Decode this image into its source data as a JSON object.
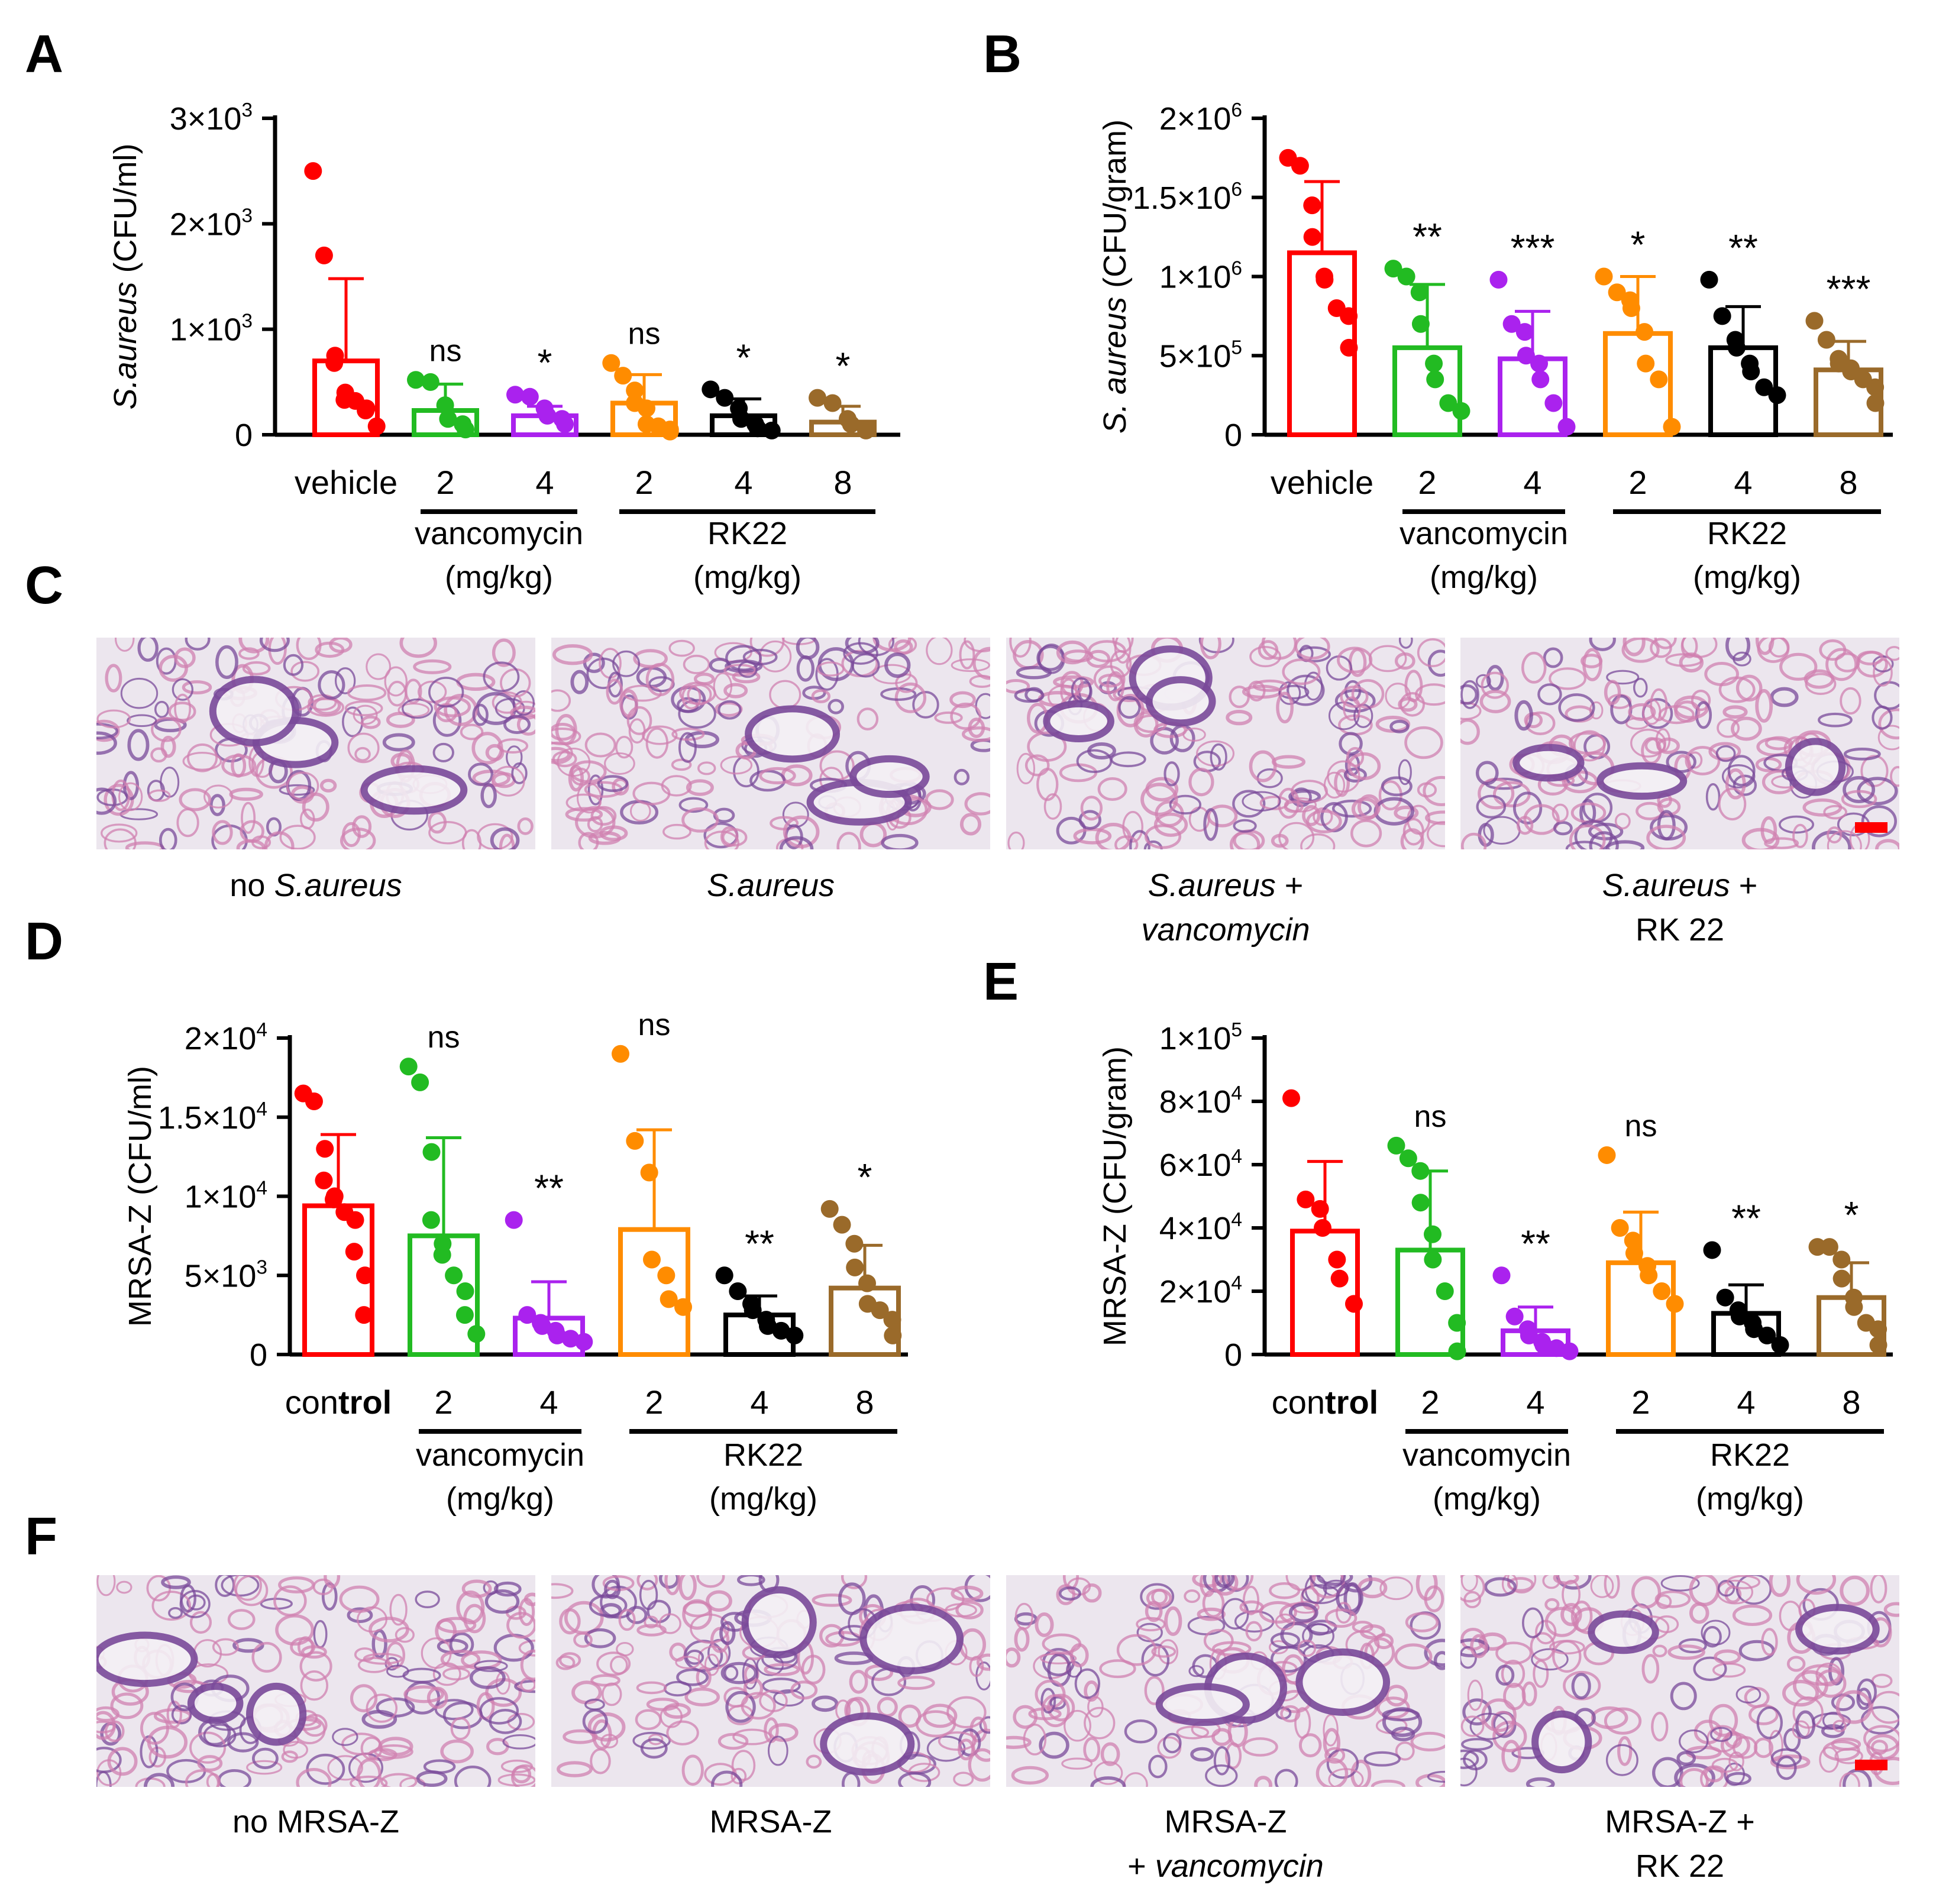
{
  "panel_letters": [
    "A",
    "B",
    "C",
    "D",
    "E",
    "F"
  ],
  "colors": {
    "vehicle": "#ff0000",
    "vanco2": "#22bb22",
    "vanco4": "#aa22ee",
    "rk2": "#ff8c00",
    "rk4": "#000000",
    "rk8": "#9a6a2a",
    "scale_bar": "#ff0000",
    "tissue_bg": "#ece6ee",
    "tissue_pink": "#d080b0",
    "tissue_purple": "#7a4a9a"
  },
  "chart_data": [
    {
      "id": "A",
      "type": "bar",
      "ylabel_italic": "S.aureus",
      "ylabel_rest": " (CFU/ml)",
      "ylim": [
        0,
        3000
      ],
      "yticks": [
        {
          "value": 0,
          "base": "0",
          "exp": ""
        },
        {
          "value": 1000,
          "base": "1×10",
          "exp": "3"
        },
        {
          "value": 2000,
          "base": "2×10",
          "exp": "3"
        },
        {
          "value": 3000,
          "base": "3×10",
          "exp": "3"
        }
      ],
      "groups": [
        {
          "label": "vehicle",
          "color": "#ff0000",
          "mean": 700,
          "sd": 780,
          "sig": "",
          "points": [
            2500,
            1700,
            750,
            680,
            400,
            330,
            320,
            250,
            230,
            80
          ]
        },
        {
          "label": "2",
          "color": "#22bb22",
          "mean": 230,
          "sd": 250,
          "sig": "ns",
          "points": [
            520,
            500,
            280,
            150,
            100,
            50
          ]
        },
        {
          "label": "4",
          "color": "#aa22ee",
          "mean": 180,
          "sd": 90,
          "sig": "*",
          "points": [
            380,
            360,
            250,
            180,
            150,
            100
          ]
        },
        {
          "label": "2",
          "color": "#ff8c00",
          "mean": 300,
          "sd": 270,
          "sig": "ns",
          "points": [
            680,
            560,
            420,
            300,
            250,
            100,
            80,
            50,
            30
          ]
        },
        {
          "label": "4",
          "color": "#000000",
          "mean": 180,
          "sd": 160,
          "sig": "*",
          "points": [
            430,
            350,
            250,
            150,
            100,
            60,
            40
          ]
        },
        {
          "label": "8",
          "color": "#9a6a2a",
          "mean": 120,
          "sd": 150,
          "sig": "*",
          "points": [
            350,
            300,
            150,
            100,
            40
          ]
        }
      ],
      "brackets": [
        {
          "from": 1,
          "to": 2,
          "lines": [
            "vancomycin",
            "(mg/kg)"
          ]
        },
        {
          "from": 3,
          "to": 5,
          "lines": [
            "RK22",
            "(mg/kg)"
          ]
        }
      ]
    },
    {
      "id": "B",
      "type": "bar",
      "ylabel_italic": "S. aureus",
      "ylabel_rest": " (CFU/gram)",
      "ylim": [
        0,
        2000000
      ],
      "yticks": [
        {
          "value": 0,
          "base": "0",
          "exp": ""
        },
        {
          "value": 500000,
          "base": "5×10",
          "exp": "5"
        },
        {
          "value": 1000000,
          "base": "1×10",
          "exp": "6"
        },
        {
          "value": 1500000,
          "base": "1.5×10",
          "exp": "6"
        },
        {
          "value": 2000000,
          "base": "2×10",
          "exp": "6"
        }
      ],
      "groups": [
        {
          "label": "vehicle",
          "color": "#ff0000",
          "mean": 1150000,
          "sd": 450000,
          "sig": "",
          "points": [
            1750000,
            1700000,
            1450000,
            1250000,
            1000000,
            980000,
            800000,
            750000,
            550000
          ]
        },
        {
          "label": "2",
          "color": "#22bb22",
          "mean": 550000,
          "sd": 400000,
          "sig": "**",
          "points": [
            1050000,
            1000000,
            900000,
            700000,
            450000,
            350000,
            200000,
            150000
          ]
        },
        {
          "label": "4",
          "color": "#aa22ee",
          "mean": 480000,
          "sd": 300000,
          "sig": "***",
          "points": [
            980000,
            700000,
            650000,
            500000,
            450000,
            350000,
            200000,
            50000
          ]
        },
        {
          "label": "2",
          "color": "#ff8c00",
          "mean": 640000,
          "sd": 360000,
          "sig": "*",
          "points": [
            1000000,
            900000,
            850000,
            800000,
            650000,
            450000,
            350000,
            50000
          ]
        },
        {
          "label": "4",
          "color": "#000000",
          "mean": 550000,
          "sd": 260000,
          "sig": "**",
          "points": [
            980000,
            750000,
            600000,
            550000,
            450000,
            400000,
            300000,
            250000
          ]
        },
        {
          "label": "8",
          "color": "#9a6a2a",
          "mean": 410000,
          "sd": 180000,
          "sig": "***",
          "points": [
            720000,
            600000,
            480000,
            450000,
            420000,
            400000,
            350000,
            300000,
            200000
          ]
        }
      ],
      "brackets": [
        {
          "from": 1,
          "to": 2,
          "lines": [
            "vancomycin",
            "(mg/kg)"
          ]
        },
        {
          "from": 3,
          "to": 5,
          "lines": [
            "RK22",
            "(mg/kg)"
          ]
        }
      ]
    },
    {
      "id": "D",
      "type": "bar",
      "ylabel_italic": "",
      "ylabel_rest": "MRSA-Z (CFU/ml)",
      "ylim": [
        0,
        20000
      ],
      "yticks": [
        {
          "value": 0,
          "base": "0",
          "exp": ""
        },
        {
          "value": 5000,
          "base": "5×10",
          "exp": "3"
        },
        {
          "value": 10000,
          "base": "1×10",
          "exp": "4"
        },
        {
          "value": 15000,
          "base": "1.5×10",
          "exp": "4"
        },
        {
          "value": 20000,
          "base": "2×10",
          "exp": "4"
        }
      ],
      "groups": [
        {
          "label": "control",
          "color": "#ff0000",
          "mean": 9400,
          "sd": 4500,
          "sig": "",
          "points": [
            16500,
            16000,
            13000,
            11000,
            10000,
            9800,
            9000,
            8500,
            6500,
            5000,
            2500
          ]
        },
        {
          "label": "2",
          "color": "#22bb22",
          "mean": 7500,
          "sd": 6200,
          "sig": "ns",
          "points": [
            18200,
            17200,
            12800,
            8500,
            7000,
            6300,
            5000,
            4000,
            2500,
            1300
          ]
        },
        {
          "label": "4",
          "color": "#aa22ee",
          "mean": 2300,
          "sd": 2300,
          "sig": "**",
          "points": [
            8500,
            2500,
            2000,
            1800,
            1500,
            1200,
            1000,
            800
          ]
        },
        {
          "label": "2",
          "color": "#ff8c00",
          "mean": 7900,
          "sd": 6300,
          "sig": "ns",
          "points": [
            19000,
            13500,
            11500,
            6000,
            5000,
            3500,
            3000
          ]
        },
        {
          "label": "4",
          "color": "#000000",
          "mean": 2500,
          "sd": 1200,
          "sig": "**",
          "points": [
            5000,
            4000,
            3200,
            2800,
            2200,
            1800,
            1500,
            1200
          ]
        },
        {
          "label": "8",
          "color": "#9a6a2a",
          "mean": 4200,
          "sd": 2700,
          "sig": "*",
          "points": [
            9200,
            8200,
            7000,
            5500,
            4500,
            3200,
            2800,
            2200,
            1200
          ]
        }
      ],
      "brackets": [
        {
          "from": 1,
          "to": 2,
          "lines": [
            "vancomycin",
            "(mg/kg)"
          ]
        },
        {
          "from": 3,
          "to": 5,
          "lines": [
            "RK22",
            "(mg/kg)"
          ]
        }
      ]
    },
    {
      "id": "E",
      "type": "bar",
      "ylabel_italic": "",
      "ylabel_rest": "MRSA-Z (CFU/gram)",
      "ylim": [
        0,
        100000
      ],
      "yticks": [
        {
          "value": 0,
          "base": "0",
          "exp": ""
        },
        {
          "value": 20000,
          "base": "2×10",
          "exp": "4"
        },
        {
          "value": 40000,
          "base": "4×10",
          "exp": "4"
        },
        {
          "value": 60000,
          "base": "6×10",
          "exp": "4"
        },
        {
          "value": 80000,
          "base": "8×10",
          "exp": "4"
        },
        {
          "value": 100000,
          "base": "1×10",
          "exp": "5"
        }
      ],
      "groups": [
        {
          "label": "control",
          "color": "#ff0000",
          "mean": 39000,
          "sd": 22000,
          "sig": "",
          "points": [
            81000,
            49000,
            46000,
            40000,
            30000,
            24000,
            16000
          ]
        },
        {
          "label": "2",
          "color": "#22bb22",
          "mean": 33000,
          "sd": 25000,
          "sig": "ns",
          "points": [
            66000,
            62000,
            58000,
            48000,
            38000,
            30000,
            20000,
            10000,
            1000
          ]
        },
        {
          "label": "4",
          "color": "#aa22ee",
          "mean": 7500,
          "sd": 7500,
          "sig": "**",
          "points": [
            25000,
            12000,
            8000,
            6000,
            4000,
            3000,
            2000,
            1000
          ]
        },
        {
          "label": "2",
          "color": "#ff8c00",
          "mean": 29000,
          "sd": 16000,
          "sig": "ns",
          "points": [
            63000,
            40000,
            36000,
            32000,
            28000,
            25000,
            20000,
            16000
          ]
        },
        {
          "label": "4",
          "color": "#000000",
          "mean": 13000,
          "sd": 9000,
          "sig": "**",
          "points": [
            33000,
            18000,
            14000,
            12000,
            10000,
            8000,
            6000,
            3000
          ]
        },
        {
          "label": "8",
          "color": "#9a6a2a",
          "mean": 18000,
          "sd": 11000,
          "sig": "*",
          "points": [
            34000,
            34000,
            30000,
            24000,
            18000,
            15000,
            10000,
            8000,
            3000
          ]
        }
      ],
      "brackets": [
        {
          "from": 1,
          "to": 2,
          "lines": [
            "vancomycin",
            "(mg/kg)"
          ]
        },
        {
          "from": 3,
          "to": 5,
          "lines": [
            "RK22",
            "(mg/kg)"
          ]
        }
      ]
    }
  ],
  "histology_C": [
    {
      "caption_lines": [
        [
          {
            "t": "no ",
            "i": false
          },
          {
            "t": "S.aureus",
            "i": true
          }
        ]
      ],
      "scale_bar": false
    },
    {
      "caption_lines": [
        [
          {
            "t": "S.aureus",
            "i": true
          }
        ]
      ],
      "scale_bar": false
    },
    {
      "caption_lines": [
        [
          {
            "t": "S.aureus",
            "i": true
          },
          {
            "t": " +",
            "i": false
          }
        ],
        [
          {
            "t": "vancomycin",
            "i": true
          }
        ]
      ],
      "scale_bar": false
    },
    {
      "caption_lines": [
        [
          {
            "t": "S.aureus",
            "i": true
          },
          {
            "t": " +",
            "i": false
          }
        ],
        [
          {
            "t": "RK 22",
            "i": false
          }
        ]
      ],
      "scale_bar": true
    }
  ],
  "histology_F": [
    {
      "caption_lines": [
        [
          {
            "t": "no MRSA-Z",
            "i": false
          }
        ]
      ],
      "scale_bar": false
    },
    {
      "caption_lines": [
        [
          {
            "t": "MRSA-Z",
            "i": false
          }
        ]
      ],
      "scale_bar": false
    },
    {
      "caption_lines": [
        [
          {
            "t": "MRSA-Z",
            "i": false
          }
        ],
        [
          {
            "t": "+ ",
            "i": false
          },
          {
            "t": "vancomycin",
            "i": true
          }
        ]
      ],
      "scale_bar": false
    },
    {
      "caption_lines": [
        [
          {
            "t": "MRSA-Z +",
            "i": false
          }
        ],
        [
          {
            "t": "RK 22",
            "i": false
          }
        ]
      ],
      "scale_bar": true
    }
  ]
}
